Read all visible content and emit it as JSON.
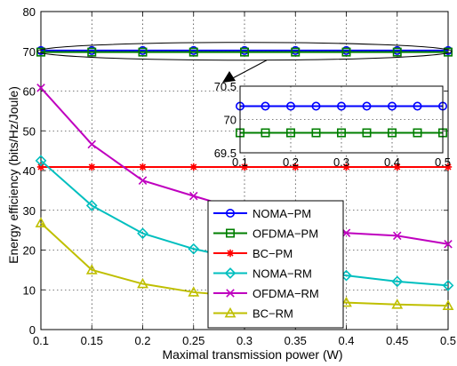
{
  "chart_data": {
    "type": "line",
    "xlabel": "Maximal transmission power (W)",
    "ylabel": "Energy efficiency (bits/Hz/Joule)",
    "xlim": [
      0.1,
      0.5
    ],
    "ylim": [
      0,
      80
    ],
    "xticks": [
      "0.1",
      "0.15",
      "0.2",
      "0.25",
      "0.3",
      "0.35",
      "0.4",
      "0.45",
      "0.5"
    ],
    "yticks": [
      "0",
      "10",
      "20",
      "30",
      "40",
      "50",
      "60",
      "70",
      "80"
    ],
    "grid": true,
    "legend_position": "center-right",
    "x": [
      0.1,
      0.15,
      0.2,
      0.25,
      0.3,
      0.35,
      0.4,
      0.45,
      0.5
    ],
    "series": [
      {
        "name": "NOMA−PM",
        "color": "#0000ff",
        "marker": "circle",
        "values": [
          70.2,
          70.2,
          70.2,
          70.2,
          70.2,
          70.2,
          70.2,
          70.2,
          70.2
        ]
      },
      {
        "name": "OFDMA−PM",
        "color": "#007f00",
        "marker": "square",
        "values": [
          69.8,
          69.8,
          69.8,
          69.8,
          69.8,
          69.8,
          69.8,
          69.8,
          69.8
        ]
      },
      {
        "name": "BC−PM",
        "color": "#ff0000",
        "marker": "asterisk",
        "values": [
          40.9,
          40.9,
          40.9,
          40.9,
          40.9,
          40.9,
          40.9,
          40.9,
          40.9
        ]
      },
      {
        "name": "NOMA−RM",
        "color": "#00bfbf",
        "marker": "diamond",
        "values": [
          42.5,
          31.2,
          24.2,
          20.3,
          17.5,
          15.3,
          13.6,
          12.1,
          11.1
        ]
      },
      {
        "name": "OFDMA−RM",
        "color": "#bf00bf",
        "marker": "x",
        "values": [
          60.8,
          46.6,
          37.5,
          33.6,
          29.8,
          26.6,
          24.3,
          23.6,
          21.5
        ]
      },
      {
        "name": "BC−RM",
        "color": "#bfbf00",
        "marker": "triangle",
        "values": [
          26.8,
          15.0,
          11.5,
          9.4,
          8.3,
          7.5,
          6.8,
          6.3,
          6.0
        ]
      }
    ],
    "inset": {
      "xlim": [
        0.1,
        0.5
      ],
      "ylim": [
        69.5,
        70.5
      ],
      "xticks": [
        "0.1",
        "0.2",
        "0.3",
        "0.4",
        "0.5"
      ],
      "yticks": [
        "69.5",
        "70",
        "70.5"
      ],
      "series_shown": [
        "NOMA−PM",
        "OFDMA−PM"
      ]
    }
  }
}
